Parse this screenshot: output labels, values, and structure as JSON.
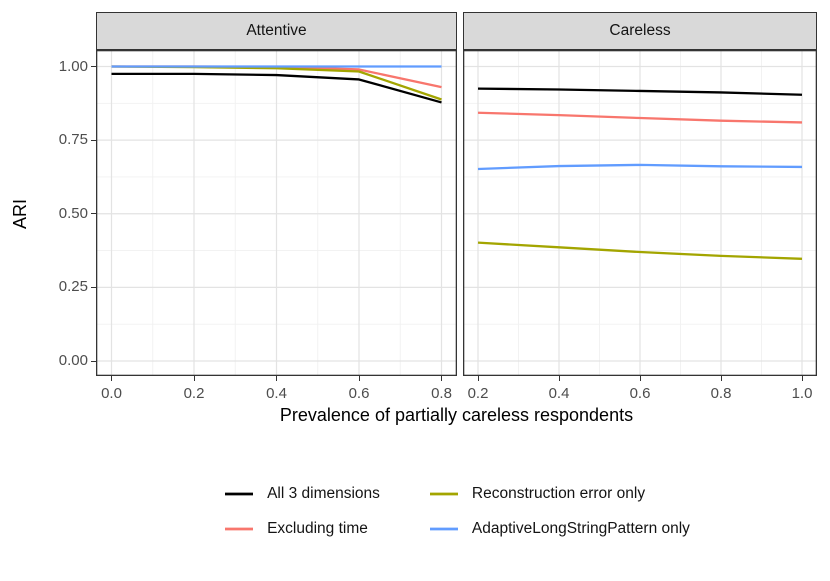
{
  "chart_data": {
    "type": "line",
    "title": "",
    "xlabel": "Prevalence of partially careless respondents",
    "ylabel": "ARI",
    "ylim": [
      0,
      1
    ],
    "y_ticks": [
      0,
      0.25,
      0.5,
      0.75,
      1
    ],
    "y_tick_labels": [
      "0.00",
      "0.25",
      "0.50",
      "0.75",
      "1.00"
    ],
    "grid": "major and minor, light gray on white (theme_bw)",
    "legend_position": "bottom",
    "facets": [
      {
        "label": "Attentive",
        "xlim": [
          0.0,
          0.8
        ],
        "x_ticks": [
          0.0,
          0.2,
          0.4,
          0.6,
          0.8
        ],
        "x_tick_labels": [
          "0.0",
          "0.2",
          "0.4",
          "0.6",
          "0.8"
        ],
        "x": [
          0.0,
          0.2,
          0.4,
          0.6,
          0.8
        ],
        "series": [
          {
            "name": "All 3 dimensions",
            "color": "#000000",
            "values": [
              0.975,
              0.975,
              0.971,
              0.956,
              0.878
            ]
          },
          {
            "name": "Excluding time",
            "color": "#F8766D",
            "values": [
              1.0,
              1.0,
              0.999,
              0.99,
              0.93
            ]
          },
          {
            "name": "Reconstruction error only",
            "color": "#A3A500",
            "values": [
              1.0,
              0.998,
              0.994,
              0.983,
              0.888
            ]
          },
          {
            "name": "AdaptiveLongStringPattern only",
            "color": "#619CFF",
            "values": [
              1.0,
              1.0,
              1.0,
              1.0,
              1.0
            ]
          }
        ]
      },
      {
        "label": "Careless",
        "xlim": [
          0.2,
          1.0
        ],
        "x_ticks": [
          0.2,
          0.4,
          0.6,
          0.8,
          1.0
        ],
        "x_tick_labels": [
          "0.2",
          "0.4",
          "0.6",
          "0.8",
          "1.0"
        ],
        "x": [
          0.2,
          0.4,
          0.6,
          0.8,
          1.0
        ],
        "series": [
          {
            "name": "All 3 dimensions",
            "color": "#000000",
            "values": [
              0.925,
              0.922,
              0.917,
              0.912,
              0.904
            ]
          },
          {
            "name": "Excluding time",
            "color": "#F8766D",
            "values": [
              0.843,
              0.835,
              0.825,
              0.816,
              0.81
            ]
          },
          {
            "name": "Reconstruction error only",
            "color": "#A3A500",
            "values": [
              0.402,
              0.386,
              0.37,
              0.357,
              0.347
            ]
          },
          {
            "name": "AdaptiveLongStringPattern only",
            "color": "#619CFF",
            "values": [
              0.652,
              0.662,
              0.666,
              0.661,
              0.659
            ]
          }
        ]
      }
    ],
    "legend": [
      {
        "label": "All 3 dimensions",
        "color": "#000000"
      },
      {
        "label": "Excluding time",
        "color": "#F8766D"
      },
      {
        "label": "Reconstruction error only",
        "color": "#A3A500"
      },
      {
        "label": "AdaptiveLongStringPattern only",
        "color": "#619CFF"
      }
    ],
    "colors": {
      "strip_background": "#D9D9D9",
      "panel_border": "#343434",
      "grid_major": "#E3E3E3",
      "grid_minor": "#F1F1F1",
      "tick_text": "#4D4D4D"
    }
  }
}
